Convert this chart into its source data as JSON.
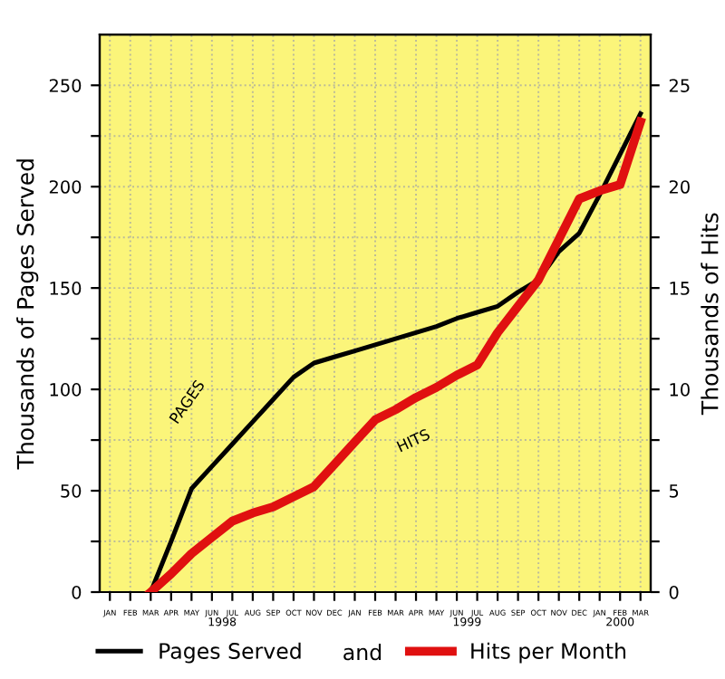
{
  "chart_data": {
    "type": "line",
    "ylabel": "Thousands of Pages Served",
    "y2label": "Thousands of Hits",
    "categories": [
      "JAN",
      "FEB",
      "MAR",
      "APR",
      "MAY",
      "JUN",
      "JUL",
      "AUG",
      "SEP",
      "OCT",
      "NOV",
      "DEC",
      "JAN",
      "FEB",
      "MAR",
      "APR",
      "MAY",
      "JUN",
      "JUL",
      "AUG",
      "SEP",
      "OCT",
      "NOV",
      "DEC",
      "JAN",
      "FEB",
      "MAR"
    ],
    "series": [
      {
        "name": "Pages Served",
        "color": "#000000",
        "values": [
          null,
          null,
          0,
          25,
          51,
          62,
          73,
          84,
          95,
          106,
          113,
          116,
          119,
          122,
          125,
          128,
          131,
          135,
          138,
          141,
          148,
          154,
          168,
          177,
          196,
          216,
          236
        ]
      },
      {
        "name": "Hits per Month",
        "color": "#e01010",
        "axis": "y2",
        "values": [
          null,
          null,
          0,
          0.9,
          1.9,
          2.7,
          3.5,
          3.9,
          4.2,
          4.7,
          5.2,
          6.3,
          7.4,
          8.5,
          9.0,
          9.6,
          10.1,
          10.7,
          11.2,
          12.8,
          14.1,
          15.4,
          17.4,
          19.4,
          19.8,
          20.1,
          23.2
        ]
      }
    ],
    "ylim": [
      0,
      275
    ],
    "yticks": [
      0,
      {
        "value": 25,
        "label": null
      },
      50,
      {
        "value": 75,
        "label": null
      },
      100,
      {
        "value": 125,
        "label": null
      },
      150,
      {
        "value": 175,
        "label": null
      },
      200,
      {
        "value": 225,
        "label": null
      },
      250
    ],
    "y2lim": [
      0,
      27.5
    ],
    "y2ticks": [
      0,
      {
        "value": 2.5,
        "label": null
      },
      5,
      {
        "value": 7.5,
        "label": null
      },
      10,
      {
        "value": 12.5,
        "label": null
      },
      15,
      {
        "value": 17.5,
        "label": null
      },
      20,
      {
        "value": 22.5,
        "label": null
      },
      25
    ],
    "annotations": [
      "PAGES",
      "HITS",
      "1998",
      "1999",
      "2000",
      "and"
    ],
    "grid": true,
    "legend": "bottom",
    "line_style": "solid",
    "marker": "none"
  }
}
